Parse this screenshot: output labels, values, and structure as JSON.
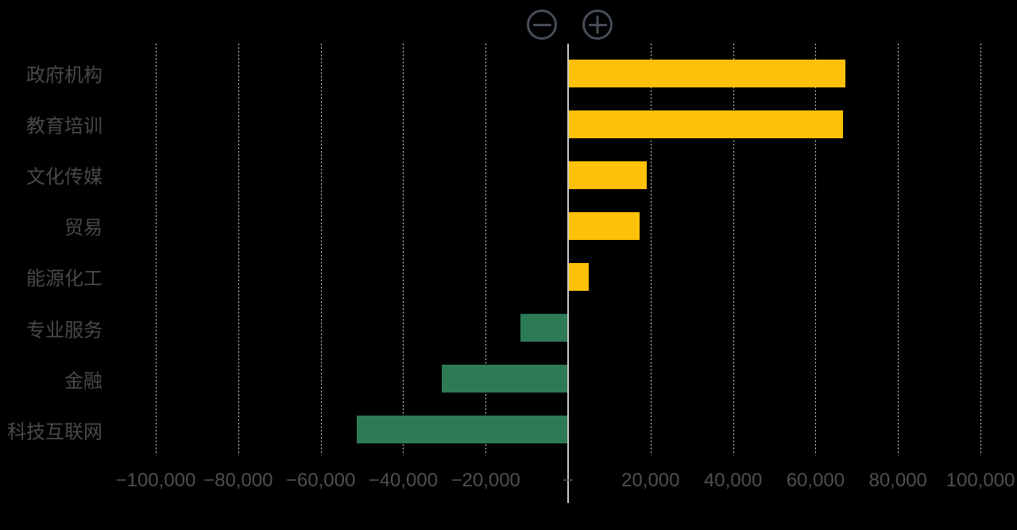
{
  "toolbar": {
    "zoom_out_icon": "minus-circle-icon",
    "zoom_in_icon": "plus-circle-icon"
  },
  "chart_data": {
    "type": "bar",
    "orientation": "horizontal",
    "title": "",
    "legend": "none",
    "grid": "vertical-dashed",
    "categories": [
      "政府机构",
      "教育培训",
      "文化传媒",
      "贸易",
      "能源化工",
      "专业服务",
      "金融",
      "科技互联网"
    ],
    "values": [
      67200,
      66700,
      19000,
      17300,
      5000,
      -11600,
      -30700,
      -51300
    ],
    "xlim": [
      -100000,
      100000
    ],
    "x_ticks": [
      -100000,
      -80000,
      -60000,
      -40000,
      -20000,
      0,
      20000,
      40000,
      60000,
      80000,
      100000
    ],
    "x_tick_labels": [
      "−100,000",
      "−80,000",
      "−60,000",
      "−40,000",
      "−20,000",
      "−",
      "20,000",
      "40,000",
      "60,000",
      "80,000",
      "100,000"
    ],
    "series_colors": {
      "positive": "#ffc107",
      "negative": "#2d7a57"
    }
  },
  "colors": {
    "background": "#000000",
    "bar_positive": "#ffc107",
    "bar_negative": "#2d7a57",
    "gridline": "#d2d2d2",
    "zero_axis": "#c8cacc",
    "category_label": "#48494c",
    "tick_label": "#4c4f53",
    "control_stroke": "#474e57"
  }
}
